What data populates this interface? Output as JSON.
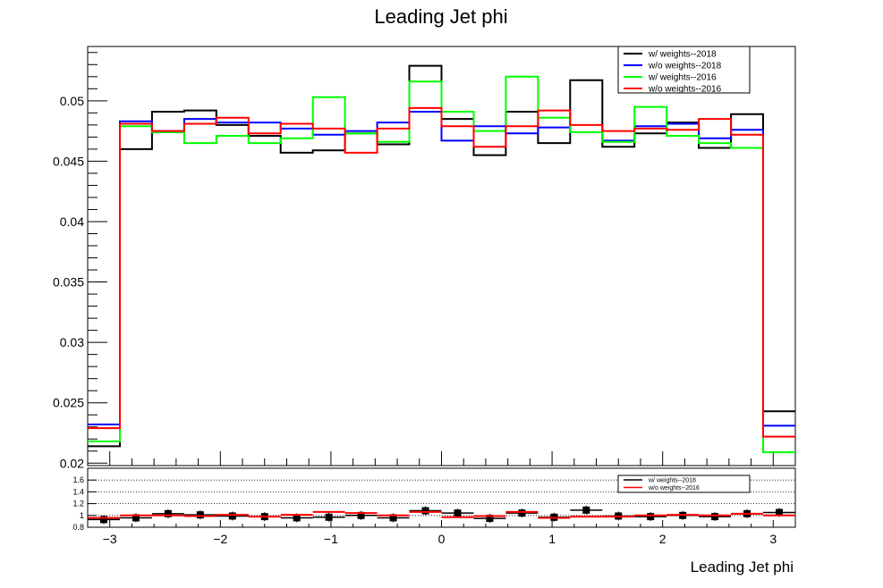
{
  "chart_data": [
    {
      "type": "step",
      "title": "Leading Jet phi",
      "xlabel": "Leading Jet phi",
      "ylabel": "",
      "xlim": [
        -3.2,
        3.2
      ],
      "ylim": [
        0.0198,
        0.0545
      ],
      "xticks": [
        -3,
        -2,
        -1,
        0,
        1,
        2,
        3
      ],
      "xtick_labels": [
        "−3",
        "−2",
        "−1",
        "0",
        "1",
        "2",
        "3"
      ],
      "yticks": [
        0.02,
        0.025,
        0.03,
        0.035,
        0.04,
        0.045,
        0.05
      ],
      "ytick_labels": [
        "0.02",
        "0.025",
        "0.03",
        "0.035",
        "0.04",
        "0.045",
        "0.05"
      ],
      "legend_position": "top-right",
      "grid": false,
      "series": [
        {
          "name": "w/ weights--2018",
          "color": "#000000",
          "values": [
            0.0214,
            0.046,
            0.0491,
            0.0492,
            0.048,
            0.0471,
            0.0457,
            0.0459,
            0.0473,
            0.0464,
            0.0529,
            0.0485,
            0.0455,
            0.0491,
            0.0465,
            0.0517,
            0.0462,
            0.0473,
            0.0482,
            0.0461,
            0.0489,
            0.0243
          ]
        },
        {
          "name": "w/o weights--2018",
          "color": "#0000ff",
          "values": [
            0.0232,
            0.0483,
            0.0475,
            0.0485,
            0.0482,
            0.0482,
            0.0477,
            0.0472,
            0.0475,
            0.0482,
            0.0491,
            0.0467,
            0.0479,
            0.0473,
            0.0478,
            0.0474,
            0.0467,
            0.0479,
            0.0481,
            0.0469,
            0.0476,
            0.0231
          ]
        },
        {
          "name": "w/ weights--2016",
          "color": "#00ff00",
          "values": [
            0.0218,
            0.0479,
            0.0474,
            0.0465,
            0.0471,
            0.0465,
            0.0469,
            0.0503,
            0.0473,
            0.0466,
            0.0516,
            0.0491,
            0.0475,
            0.052,
            0.0486,
            0.0474,
            0.0466,
            0.0495,
            0.0471,
            0.0465,
            0.0461,
            0.0209
          ]
        },
        {
          "name": "w/o weights--2016",
          "color": "#ff0000",
          "values": [
            0.0229,
            0.0481,
            0.0475,
            0.0481,
            0.0486,
            0.0473,
            0.0481,
            0.0477,
            0.0457,
            0.0477,
            0.0494,
            0.0479,
            0.0462,
            0.0479,
            0.0492,
            0.048,
            0.0475,
            0.0477,
            0.0476,
            0.0485,
            0.0472,
            0.0222
          ]
        }
      ]
    },
    {
      "type": "ratio",
      "xlim": [
        -3.2,
        3.2
      ],
      "ylim": [
        0.8,
        1.8
      ],
      "yticks": [
        0.8,
        1,
        1.2,
        1.4,
        1.6
      ],
      "ytick_labels": [
        "0.8",
        "1",
        "1.2",
        "1.4",
        "1.6"
      ],
      "grid_lines": [
        1,
        1.2,
        1.4,
        1.6
      ],
      "legend_position": "top-right",
      "series": [
        {
          "name": "w/ weights--2018",
          "color": "#000000",
          "values": [
            0.93,
            0.96,
            1.03,
            1.01,
            0.99,
            0.98,
            0.96,
            0.97,
            1.0,
            0.96,
            1.08,
            1.04,
            0.95,
            1.04,
            0.97,
            1.09,
            0.99,
            0.98,
            1.0,
            0.98,
            1.03,
            1.05
          ]
        },
        {
          "name": "w/o weights--2016",
          "color": "#ff0000",
          "values": [
            0.96,
            1.0,
            1.0,
            0.99,
            1.01,
            0.98,
            1.01,
            1.06,
            1.04,
            1.0,
            1.06,
            0.97,
            0.99,
            1.06,
            0.96,
            0.98,
            0.98,
            1.0,
            1.01,
            1.0,
            1.03,
            1.0
          ]
        }
      ]
    }
  ]
}
